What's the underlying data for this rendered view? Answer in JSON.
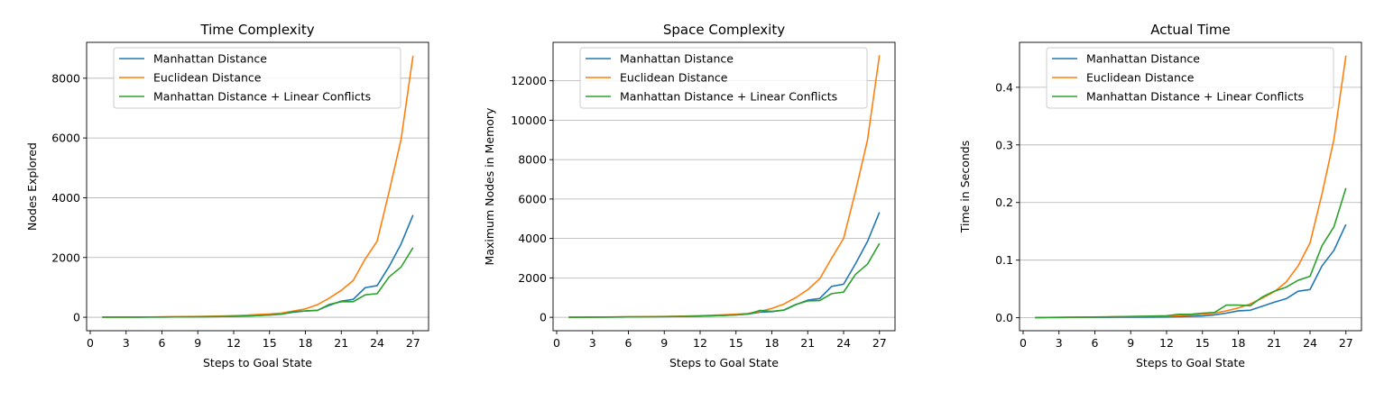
{
  "chart_data": [
    {
      "type": "line",
      "title": "Time Complexity",
      "xlabel": "Steps to Goal State",
      "ylabel": "Nodes Explored",
      "xlim": [
        -0.3,
        28.3
      ],
      "ylim": [
        -450,
        9200
      ],
      "xticks": [
        0,
        3,
        6,
        9,
        12,
        15,
        18,
        21,
        24,
        27
      ],
      "yticks": [
        0,
        2000,
        4000,
        6000,
        8000
      ],
      "ytick_labels": [
        "0",
        "2000",
        "4000",
        "6000",
        "8000"
      ],
      "grid": "horizontal",
      "legend": "top",
      "x": [
        1,
        2,
        3,
        4,
        5,
        6,
        7,
        8,
        9,
        10,
        11,
        12,
        13,
        14,
        15,
        16,
        17,
        18,
        19,
        20,
        21,
        22,
        23,
        24,
        25,
        26,
        27
      ],
      "series": [
        {
          "name": "Manhattan Distance",
          "color": "#1f77b4",
          "values": [
            2,
            3,
            4,
            5,
            7,
            9,
            11,
            14,
            17,
            21,
            27,
            35,
            45,
            60,
            80,
            110,
            170,
            210,
            230,
            400,
            540,
            600,
            990,
            1060,
            1700,
            2450,
            3420
          ]
        },
        {
          "name": "Euclidean Distance",
          "color": "#ff7f0e",
          "values": [
            2,
            4,
            5,
            7,
            10,
            14,
            18,
            23,
            28,
            34,
            42,
            55,
            70,
            90,
            110,
            140,
            210,
            280,
            420,
            640,
            900,
            1230,
            1950,
            2550,
            4200,
            5950,
            8750
          ]
        },
        {
          "name": "Manhattan Distance + Linear Conflicts",
          "color": "#2ca02c",
          "values": [
            2,
            3,
            4,
            5,
            6,
            8,
            10,
            13,
            16,
            20,
            25,
            32,
            40,
            55,
            75,
            100,
            190,
            210,
            230,
            430,
            520,
            520,
            750,
            790,
            1350,
            1680,
            2330
          ]
        }
      ]
    },
    {
      "type": "line",
      "title": "Space Complexity",
      "xlabel": "Steps to Goal State",
      "ylabel": "Maximum Nodes in Memory",
      "xlim": [
        -0.3,
        28.3
      ],
      "ylim": [
        -680,
        13950
      ],
      "xticks": [
        0,
        3,
        6,
        9,
        12,
        15,
        18,
        21,
        24,
        27
      ],
      "yticks": [
        0,
        2000,
        4000,
        6000,
        8000,
        10000,
        12000
      ],
      "ytick_labels": [
        "0",
        "2000",
        "4000",
        "6000",
        "8000",
        "10000",
        "12000"
      ],
      "grid": "horizontal",
      "legend": "top",
      "x": [
        1,
        2,
        3,
        4,
        5,
        6,
        7,
        8,
        9,
        10,
        11,
        12,
        13,
        14,
        15,
        16,
        17,
        18,
        19,
        20,
        21,
        22,
        23,
        24,
        25,
        26,
        27
      ],
      "series": [
        {
          "name": "Manhattan Distance",
          "color": "#1f77b4",
          "values": [
            3,
            6,
            9,
            12,
            16,
            20,
            25,
            30,
            36,
            42,
            50,
            62,
            80,
            100,
            130,
            170,
            260,
            290,
            360,
            640,
            870,
            950,
            1570,
            1680,
            2720,
            3850,
            5330
          ]
        },
        {
          "name": "Euclidean Distance",
          "color": "#ff7f0e",
          "values": [
            3,
            6,
            10,
            14,
            19,
            24,
            30,
            37,
            45,
            55,
            68,
            85,
            105,
            130,
            160,
            200,
            300,
            450,
            670,
            1000,
            1400,
            1950,
            3000,
            4000,
            6400,
            9000,
            13300
          ]
        },
        {
          "name": "Manhattan Distance + Linear Conflicts",
          "color": "#2ca02c",
          "values": [
            3,
            5,
            8,
            11,
            14,
            18,
            22,
            28,
            34,
            40,
            48,
            60,
            75,
            95,
            120,
            160,
            350,
            300,
            370,
            650,
            830,
            850,
            1200,
            1280,
            2180,
            2700,
            3750
          ]
        }
      ]
    },
    {
      "type": "line",
      "title": "Actual Time",
      "xlabel": "Steps to Goal State",
      "ylabel": "Time in Seconds",
      "xlim": [
        -0.3,
        28.3
      ],
      "ylim": [
        -0.0225,
        0.478
      ],
      "xticks": [
        0,
        3,
        6,
        9,
        12,
        15,
        18,
        21,
        24,
        27
      ],
      "yticks": [
        0,
        0.1,
        0.2,
        0.3,
        0.4
      ],
      "ytick_labels": [
        "0.0",
        "0.1",
        "0.2",
        "0.3",
        "0.4"
      ],
      "grid": "horizontal",
      "legend": "top",
      "x": [
        1,
        2,
        3,
        4,
        5,
        6,
        7,
        8,
        9,
        10,
        11,
        12,
        13,
        14,
        15,
        16,
        17,
        18,
        19,
        20,
        21,
        22,
        23,
        24,
        25,
        26,
        27
      ],
      "series": [
        {
          "name": "Manhattan Distance",
          "color": "#1f77b4",
          "values": [
            0.0003,
            0.0004,
            0.0005,
            0.0006,
            0.0007,
            0.0008,
            0.0009,
            0.001,
            0.0011,
            0.0012,
            0.0014,
            0.0017,
            0.002,
            0.0025,
            0.003,
            0.005,
            0.008,
            0.012,
            0.013,
            0.02,
            0.027,
            0.033,
            0.046,
            0.049,
            0.09,
            0.117,
            0.162
          ]
        },
        {
          "name": "Euclidean Distance",
          "color": "#ff7f0e",
          "values": [
            0.0003,
            0.0005,
            0.0007,
            0.0009,
            0.0011,
            0.0013,
            0.0015,
            0.0018,
            0.002,
            0.0023,
            0.0026,
            0.003,
            0.0035,
            0.0045,
            0.006,
            0.008,
            0.012,
            0.017,
            0.024,
            0.034,
            0.045,
            0.062,
            0.09,
            0.13,
            0.215,
            0.31,
            0.455
          ]
        },
        {
          "name": "Manhattan Distance + Linear Conflicts",
          "color": "#2ca02c",
          "values": [
            0.0003,
            0.0005,
            0.0007,
            0.0009,
            0.0011,
            0.0013,
            0.0015,
            0.0018,
            0.0022,
            0.0026,
            0.003,
            0.0035,
            0.006,
            0.006,
            0.008,
            0.009,
            0.022,
            0.022,
            0.021,
            0.036,
            0.046,
            0.053,
            0.065,
            0.072,
            0.125,
            0.158,
            0.225
          ]
        }
      ]
    }
  ]
}
